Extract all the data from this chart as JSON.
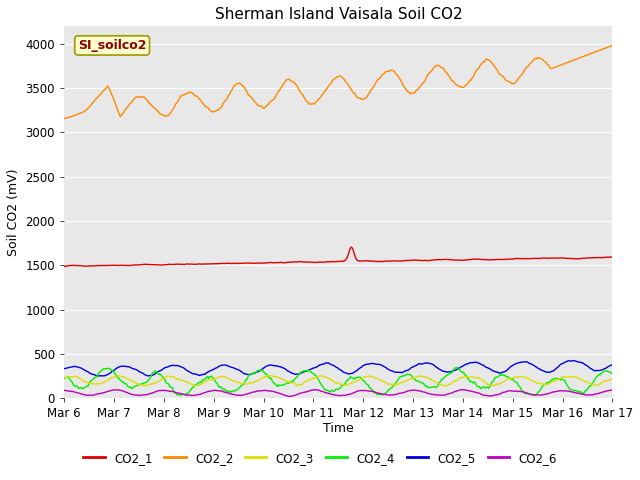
{
  "title": "Sherman Island Vaisala Soil CO2",
  "ylabel": "Soil CO2 (mV)",
  "xlabel": "Time",
  "ylim": [
    0,
    4200
  ],
  "yticks": [
    0,
    500,
    1000,
    1500,
    2000,
    2500,
    3000,
    3500,
    4000
  ],
  "xtick_labels": [
    "Mar 6",
    "Mar 7",
    "Mar 8",
    "Mar 9",
    "Mar 10",
    "Mar 11",
    "Mar 12",
    "Mar 13",
    "Mar 14",
    "Mar 15",
    "Mar 16",
    "Mar 17"
  ],
  "bg_color": "#e8e8e8",
  "fig_color": "#ffffff",
  "legend_label": "SI_soilco2",
  "series_colors": {
    "CO2_1": "#dd0000",
    "CO2_2": "#ff8800",
    "CO2_3": "#dddd00",
    "CO2_4": "#00ee00",
    "CO2_5": "#0000dd",
    "CO2_6": "#bb00bb"
  }
}
